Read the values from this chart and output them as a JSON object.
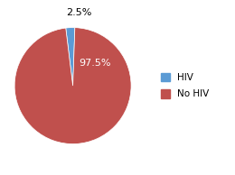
{
  "slices": [
    2.5,
    97.5
  ],
  "labels": [
    "HIV",
    "No HIV"
  ],
  "colors": [
    "#5b9bd5",
    "#c0504d"
  ],
  "startangle": 97,
  "background_color": "#ffffff",
  "legend_labels": [
    "HIV",
    "No HIV"
  ],
  "pct_label_small": "2.5%",
  "pct_label_large": "97.5%",
  "label_fontsize": 8,
  "legend_fontsize": 7.5
}
